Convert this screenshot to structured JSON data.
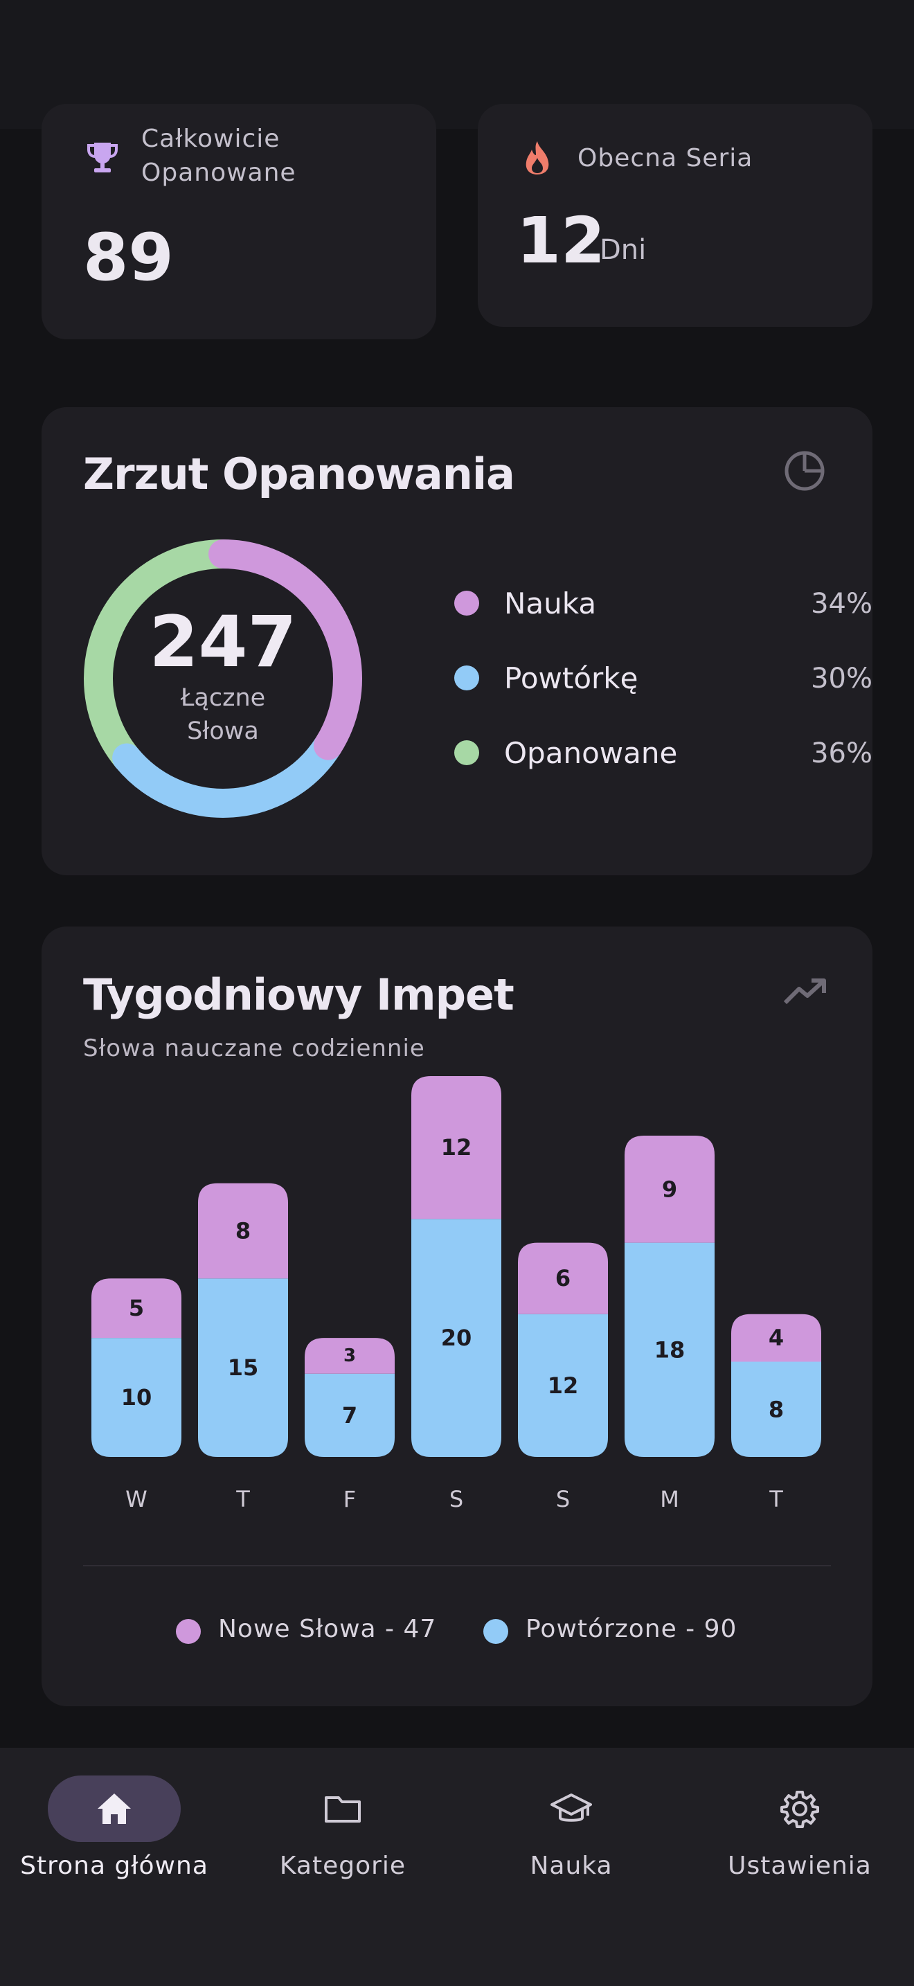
{
  "stats": {
    "mastered": {
      "icon": "trophy-icon",
      "label_line1": "Całkowicie",
      "label_line2": "Opanowane",
      "value": "89"
    },
    "streak": {
      "icon": "flame-icon",
      "label": "Obecna Seria",
      "value": "12",
      "unit": "Dni"
    }
  },
  "mastery": {
    "title": "Zrzut Opanowania",
    "icon": "pie-chart-icon",
    "total": "247",
    "total_label_line1": "Łączne",
    "total_label_line2": "Słowa",
    "legend": [
      {
        "name": "Nauka",
        "percent": "34%",
        "color": "#cf98dc"
      },
      {
        "name": "Powtórkę",
        "percent": "30%",
        "color": "#92cbf7"
      },
      {
        "name": "Opanowane",
        "percent": "36%",
        "color": "#a7d8a5"
      }
    ]
  },
  "weekly": {
    "title": "Tygodniowy Impet",
    "subtitle": "Słowa nauczane codziennie",
    "icon": "trending-up-icon",
    "legend_new": "Nowe Słowa - 47",
    "legend_review": "Powtórzone - 90"
  },
  "chart_data": {
    "type": "bar",
    "stacked": true,
    "categories": [
      "W",
      "T",
      "F",
      "S",
      "S",
      "M",
      "T"
    ],
    "series": [
      {
        "name": "Powtórzone",
        "values": [
          10,
          15,
          7,
          20,
          12,
          18,
          8
        ],
        "color": "#92cbf7"
      },
      {
        "name": "Nowe Słowa",
        "values": [
          5,
          8,
          3,
          12,
          6,
          9,
          4
        ],
        "color": "#cf98dc"
      }
    ],
    "title": "",
    "xlabel": "",
    "ylabel": "",
    "ylim": [
      0,
      32
    ],
    "grid": false,
    "legend": "bottom"
  },
  "nav": {
    "items": [
      {
        "label": "Strona główna",
        "icon": "home-icon",
        "active": true
      },
      {
        "label": "Kategorie",
        "icon": "folder-icon",
        "active": false
      },
      {
        "label": "Nauka",
        "icon": "graduation-cap-icon",
        "active": false
      },
      {
        "label": "Ustawienia",
        "icon": "gear-icon",
        "active": false
      }
    ]
  }
}
